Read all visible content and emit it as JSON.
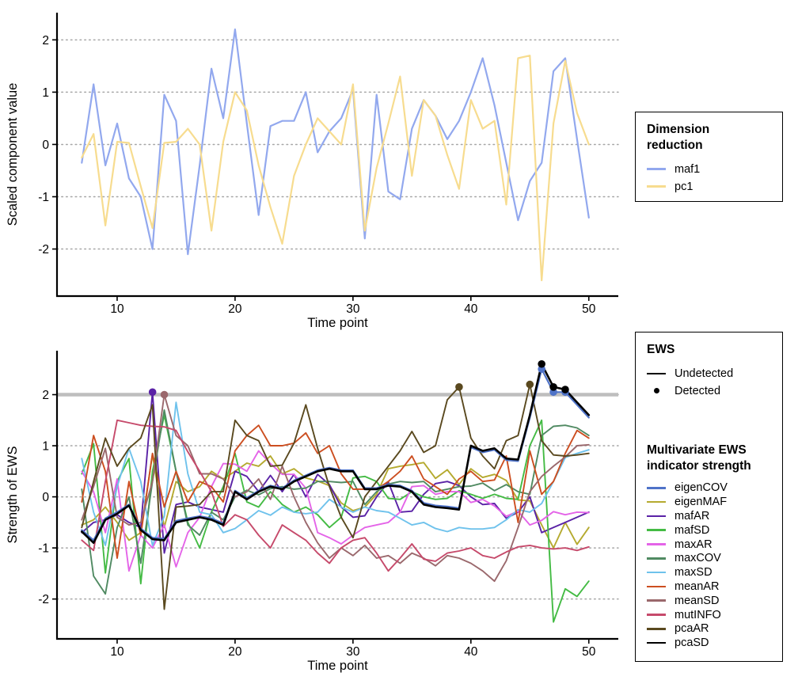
{
  "figure": {
    "background": "#ffffff",
    "xlabel": "Time point"
  },
  "chart_data": [
    {
      "id": "top",
      "type": "line",
      "title": "",
      "xlabel": "Time point",
      "ylabel": "Scaled component value",
      "xticks": [
        10,
        20,
        30,
        40,
        50
      ],
      "yticks": [
        -2,
        -1,
        0,
        1,
        2
      ],
      "xlim": [
        4.9,
        52.5
      ],
      "ylim": [
        -2.9,
        2.52
      ],
      "grid": "dotted-horizontal-y",
      "legend_position": "right",
      "x": [
        7,
        8,
        9,
        10,
        11,
        12,
        13,
        14,
        15,
        16,
        17,
        18,
        19,
        20,
        21,
        22,
        23,
        24,
        25,
        26,
        27,
        28,
        29,
        30,
        31,
        32,
        33,
        34,
        35,
        36,
        37,
        38,
        39,
        40,
        41,
        42,
        43,
        44,
        45,
        46,
        47,
        48,
        49,
        50
      ],
      "series": [
        {
          "name": "maf1",
          "color": "#92A8EE",
          "width": 2.2,
          "z": 0,
          "values": [
            -0.35,
            1.15,
            -0.4,
            0.4,
            -0.65,
            -1.0,
            -2.0,
            0.95,
            0.45,
            -2.1,
            -0.4,
            1.45,
            0.5,
            2.2,
            0.4,
            -1.35,
            0.35,
            0.45,
            0.45,
            1.0,
            -0.15,
            0.25,
            0.5,
            1.05,
            -1.8,
            0.95,
            -0.9,
            -1.05,
            0.3,
            0.85,
            0.55,
            0.1,
            0.45,
            1.0,
            1.65,
            0.75,
            -0.35,
            -1.45,
            -0.7,
            -0.35,
            1.4,
            1.65,
            0.1,
            -1.4
          ]
        },
        {
          "name": "pc1",
          "color": "#F7DC8F",
          "width": 2.2,
          "z": 0,
          "values": [
            -0.25,
            0.2,
            -1.55,
            0.05,
            0.03,
            -0.8,
            -1.6,
            0.03,
            0.05,
            0.3,
            0.0,
            -1.65,
            0.05,
            1.0,
            0.65,
            -0.4,
            -1.2,
            -1.9,
            -0.6,
            0.0,
            0.5,
            0.25,
            0.0,
            1.15,
            -1.65,
            -0.45,
            0.4,
            1.3,
            -0.6,
            0.85,
            0.55,
            -0.2,
            -0.85,
            0.85,
            0.3,
            0.45,
            -1.15,
            1.65,
            1.7,
            -2.6,
            0.4,
            1.6,
            0.6,
            0.0
          ]
        }
      ]
    },
    {
      "id": "bottom",
      "type": "line",
      "title": "",
      "xlabel": "Time point",
      "ylabel": "Strength of EWS",
      "xticks": [
        10,
        20,
        30,
        40,
        50
      ],
      "yticks": [
        -2,
        -1,
        0,
        1,
        2
      ],
      "xlim": [
        4.9,
        52.5
      ],
      "ylim": [
        -2.78,
        2.86
      ],
      "grid": "dotted-horizontal-y",
      "threshold": {
        "y": 2,
        "color": "#BEBEBE",
        "width": 4.5
      },
      "legend_position": "right",
      "x": [
        7,
        8,
        9,
        10,
        11,
        12,
        13,
        14,
        15,
        16,
        17,
        18,
        19,
        20,
        21,
        22,
        23,
        24,
        25,
        26,
        27,
        28,
        29,
        30,
        31,
        32,
        33,
        34,
        35,
        36,
        37,
        38,
        39,
        40,
        41,
        42,
        43,
        44,
        45,
        46,
        47,
        48,
        49,
        50
      ],
      "series": [
        {
          "name": "eigenCOV",
          "color": "#4F73C8",
          "width": 2.2,
          "z": 1,
          "values": [
            -0.65,
            -0.85,
            -0.42,
            -0.3,
            -0.15,
            -0.62,
            -0.8,
            -0.82,
            -0.47,
            -0.42,
            -0.38,
            -0.42,
            -0.52,
            0.12,
            -0.02,
            0.12,
            0.22,
            0.17,
            0.32,
            0.42,
            0.52,
            0.57,
            0.52,
            0.52,
            0.17,
            0.17,
            0.24,
            0.22,
            0.12,
            -0.12,
            -0.17,
            -0.19,
            -0.22,
            0.97,
            0.87,
            0.92,
            0.72,
            0.7,
            1.55,
            2.5,
            2.05,
            2.05,
            1.8,
            1.55
          ],
          "detected": [
            [
              46,
              2.5
            ],
            [
              47,
              2.05
            ],
            [
              48,
              2.05
            ]
          ]
        },
        {
          "name": "eigenMAF",
          "color": "#B5AA2F",
          "width": 1.9,
          "z": 0,
          "values": [
            -0.55,
            -0.45,
            -0.2,
            -0.5,
            -0.85,
            -0.7,
            0.83,
            -0.6,
            0.3,
            0.1,
            0.2,
            0.5,
            0.35,
            0.5,
            0.66,
            0.6,
            0.8,
            0.45,
            0.55,
            0.37,
            0.31,
            0.22,
            -0.12,
            -0.27,
            -0.2,
            0.05,
            0.55,
            0.6,
            0.63,
            0.67,
            0.36,
            0.53,
            0.24,
            0.55,
            0.38,
            0.44,
            0.32,
            -0.06,
            -0.08,
            -0.55,
            -1.0,
            -0.5,
            -0.93,
            -0.6
          ],
          "detected": []
        },
        {
          "name": "mafAR",
          "color": "#5A22A6",
          "width": 1.9,
          "z": 0,
          "values": [
            -0.7,
            -0.5,
            -0.45,
            -0.35,
            -0.5,
            -0.6,
            2.05,
            -1.1,
            -0.15,
            -0.1,
            -0.2,
            -0.25,
            -0.3,
            0.5,
            0.4,
            0.1,
            0.42,
            0.1,
            0.44,
            0.0,
            0.44,
            0.24,
            -0.2,
            -0.4,
            -0.37,
            0.0,
            0.29,
            -0.3,
            -0.28,
            0.05,
            0.26,
            0.3,
            0.22,
            0.0,
            -0.15,
            -0.13,
            -0.42,
            -0.3,
            0.0,
            -0.7,
            -0.6,
            -0.5,
            -0.4,
            -0.3
          ],
          "detected": [
            [
              13,
              2.05
            ]
          ]
        },
        {
          "name": "mafSD",
          "color": "#44BB44",
          "width": 1.9,
          "z": 0,
          "values": [
            0.45,
            1.04,
            -1.49,
            0.3,
            0.75,
            -1.7,
            0.5,
            1.6,
            0.5,
            -0.5,
            -1.0,
            -0.3,
            0.2,
            0.85,
            -0.1,
            -0.2,
            0.1,
            -0.15,
            -0.3,
            -0.2,
            -0.35,
            -0.6,
            -0.4,
            0.37,
            0.4,
            0.3,
            -0.03,
            -0.05,
            0.1,
            0.0,
            -0.05,
            -0.03,
            0.12,
            0.05,
            -0.03,
            0.05,
            -0.03,
            -0.05,
            1.0,
            1.5,
            -2.45,
            -1.8,
            -1.95,
            -1.65
          ],
          "detected": []
        },
        {
          "name": "maxAR",
          "color": "#E464E8",
          "width": 1.9,
          "z": 0,
          "values": [
            0.5,
            0.1,
            -0.7,
            0.35,
            -1.45,
            -0.75,
            -1.0,
            -0.55,
            -1.37,
            -0.7,
            -0.4,
            0.2,
            0.65,
            0.64,
            0.5,
            0.9,
            0.65,
            0.44,
            0.44,
            0.17,
            -0.7,
            -0.8,
            -0.92,
            -0.75,
            -0.6,
            -0.55,
            -0.5,
            -0.3,
            0.2,
            0.22,
            0.05,
            0.1,
            0.1,
            -0.11,
            -0.05,
            -0.18,
            -0.38,
            -0.28,
            -0.55,
            -0.46,
            -0.29,
            -0.35,
            -0.3,
            -0.31
          ],
          "detected": []
        },
        {
          "name": "maxCOV",
          "color": "#508A62",
          "width": 1.9,
          "z": 0,
          "values": [
            0.15,
            -1.55,
            -1.9,
            -0.6,
            0.0,
            -1.3,
            0.3,
            1.7,
            0.5,
            -0.55,
            -0.75,
            -0.3,
            -0.45,
            0.0,
            0.13,
            0.04,
            0.16,
            0.2,
            0.15,
            0.17,
            0.3,
            0.3,
            0.28,
            0.3,
            -0.15,
            0.1,
            0.25,
            0.3,
            0.28,
            0.3,
            0.1,
            0.15,
            0.2,
            0.21,
            0.27,
            0.12,
            0.24,
            0.1,
            0.05,
            1.2,
            1.38,
            1.4,
            1.35,
            1.2
          ],
          "detected": []
        },
        {
          "name": "maxSD",
          "color": "#6FC2EC",
          "width": 1.9,
          "z": 0,
          "values": [
            0.75,
            -0.3,
            -0.95,
            0.2,
            0.95,
            0.3,
            -0.95,
            -0.38,
            1.85,
            0.45,
            -0.3,
            -0.35,
            -0.7,
            -0.62,
            -0.45,
            -0.27,
            -0.36,
            -0.2,
            -0.3,
            -0.33,
            -0.3,
            -0.05,
            -0.2,
            -0.3,
            -0.2,
            -0.27,
            -0.3,
            -0.42,
            -0.55,
            -0.5,
            -0.62,
            -0.68,
            -0.6,
            -0.63,
            -0.63,
            -0.6,
            -0.45,
            -0.25,
            -0.3,
            -0.13,
            0.3,
            0.77,
            0.85,
            0.92
          ],
          "detected": []
        },
        {
          "name": "meanAR",
          "color": "#CC4E20",
          "width": 1.9,
          "z": 0,
          "values": [
            -0.1,
            1.2,
            0.5,
            -1.2,
            0.3,
            -0.75,
            0.85,
            -0.2,
            0.5,
            -0.1,
            0.3,
            0.2,
            -0.1,
            0.9,
            1.2,
            1.4,
            1.0,
            1.0,
            1.05,
            1.25,
            0.85,
            1.0,
            0.45,
            0.15,
            0.15,
            0.15,
            0.3,
            0.5,
            0.8,
            0.35,
            0.2,
            0.05,
            0.35,
            0.5,
            0.3,
            0.33,
            0.8,
            -0.5,
            0.9,
            0.05,
            0.3,
            0.85,
            1.3,
            1.15
          ],
          "detected": []
        },
        {
          "name": "meanSD",
          "color": "#9A686C",
          "width": 1.9,
          "z": 0,
          "values": [
            -0.45,
            0.2,
            0.95,
            -0.4,
            -0.55,
            -0.5,
            0.3,
            2.0,
            1.2,
            1.0,
            0.45,
            0.45,
            0.35,
            0.0,
            0.1,
            0.35,
            -0.05,
            0.6,
            0.0,
            -0.5,
            -0.9,
            -1.2,
            -1.0,
            -1.15,
            -0.95,
            -1.2,
            -1.15,
            -1.3,
            -1.1,
            -1.2,
            -1.35,
            -1.15,
            -1.2,
            -1.3,
            -1.45,
            -1.65,
            -1.25,
            -0.6,
            0.1,
            0.4,
            0.6,
            0.78,
            1.0,
            1.02
          ],
          "detected": [
            [
              14,
              2.0
            ]
          ]
        },
        {
          "name": "mutINFO",
          "color": "#C64A6B",
          "width": 1.9,
          "z": 0,
          "values": [
            -0.85,
            -1.05,
            0.3,
            1.5,
            1.45,
            1.4,
            1.38,
            1.37,
            1.3,
            0.88,
            0.5,
            0.1,
            -0.58,
            -0.35,
            -0.45,
            -0.75,
            -1.0,
            -0.55,
            -0.7,
            -0.85,
            -1.1,
            -1.3,
            -1.0,
            -0.85,
            -0.8,
            -1.1,
            -1.45,
            -1.2,
            -0.92,
            -1.22,
            -1.26,
            -1.1,
            -1.06,
            -1.0,
            -1.15,
            -1.2,
            -1.08,
            -0.98,
            -0.95,
            -1.0,
            -1.02,
            -1.0,
            -1.05,
            -0.98
          ],
          "detected": []
        },
        {
          "name": "pcaAR",
          "color": "#5A491F",
          "width": 1.9,
          "z": 0,
          "values": [
            -0.6,
            0.3,
            1.15,
            0.6,
            0.95,
            1.15,
            1.8,
            -2.2,
            -0.2,
            -0.18,
            -0.15,
            0.1,
            0.1,
            1.5,
            1.2,
            1.1,
            0.6,
            0.62,
            1.05,
            1.8,
            0.95,
            0.2,
            -0.4,
            -0.8,
            0.0,
            0.3,
            0.6,
            0.9,
            1.28,
            0.87,
            1.0,
            1.9,
            2.15,
            1.15,
            0.8,
            0.55,
            1.1,
            1.2,
            2.2,
            1.1,
            0.82,
            0.8,
            0.82,
            0.85
          ],
          "detected": [
            [
              39,
              2.15
            ],
            [
              45,
              2.2
            ]
          ]
        },
        {
          "name": "pcaSD",
          "color": "#000000",
          "width": 2.6,
          "z": 2,
          "values": [
            -0.68,
            -0.9,
            -0.45,
            -0.33,
            -0.17,
            -0.65,
            -0.83,
            -0.85,
            -0.5,
            -0.45,
            -0.4,
            -0.45,
            -0.55,
            0.1,
            -0.05,
            0.1,
            0.2,
            0.15,
            0.3,
            0.4,
            0.5,
            0.55,
            0.5,
            0.5,
            0.15,
            0.15,
            0.22,
            0.2,
            0.1,
            -0.15,
            -0.2,
            -0.22,
            -0.25,
            1.0,
            0.9,
            0.95,
            0.75,
            0.73,
            1.6,
            2.6,
            2.15,
            2.1,
            1.85,
            1.6
          ],
          "detected": [
            [
              46,
              2.6
            ],
            [
              47,
              2.15
            ],
            [
              48,
              2.1
            ]
          ]
        }
      ]
    }
  ],
  "legends": {
    "dimension_reduction": {
      "title_lines": [
        "Dimension",
        "reduction"
      ],
      "items": [
        {
          "label": "maf1",
          "color": "#92A8EE"
        },
        {
          "label": "pc1",
          "color": "#F7DC8F"
        }
      ]
    },
    "ews": {
      "title": "EWS",
      "items": [
        {
          "label": "Undetected",
          "glyph": "line",
          "color": "#000000"
        },
        {
          "label": "Detected",
          "glyph": "dot",
          "color": "#000000"
        }
      ]
    },
    "multivariate": {
      "title_lines": [
        "Multivariate EWS",
        "indicator strength"
      ],
      "items": [
        {
          "label": "eigenCOV",
          "color": "#4F73C8"
        },
        {
          "label": "eigenMAF",
          "color": "#B5AA2F"
        },
        {
          "label": "mafAR",
          "color": "#5A22A6"
        },
        {
          "label": "mafSD",
          "color": "#44BB44"
        },
        {
          "label": "maxAR",
          "color": "#E464E8"
        },
        {
          "label": "maxCOV",
          "color": "#508A62"
        },
        {
          "label": "maxSD",
          "color": "#6FC2EC"
        },
        {
          "label": "meanAR",
          "color": "#CC4E20"
        },
        {
          "label": "meanSD",
          "color": "#9A686C"
        },
        {
          "label": "mutINFO",
          "color": "#C64A6B"
        },
        {
          "label": "pcaAR",
          "color": "#5A491F"
        },
        {
          "label": "pcaSD",
          "color": "#000000"
        }
      ]
    }
  }
}
